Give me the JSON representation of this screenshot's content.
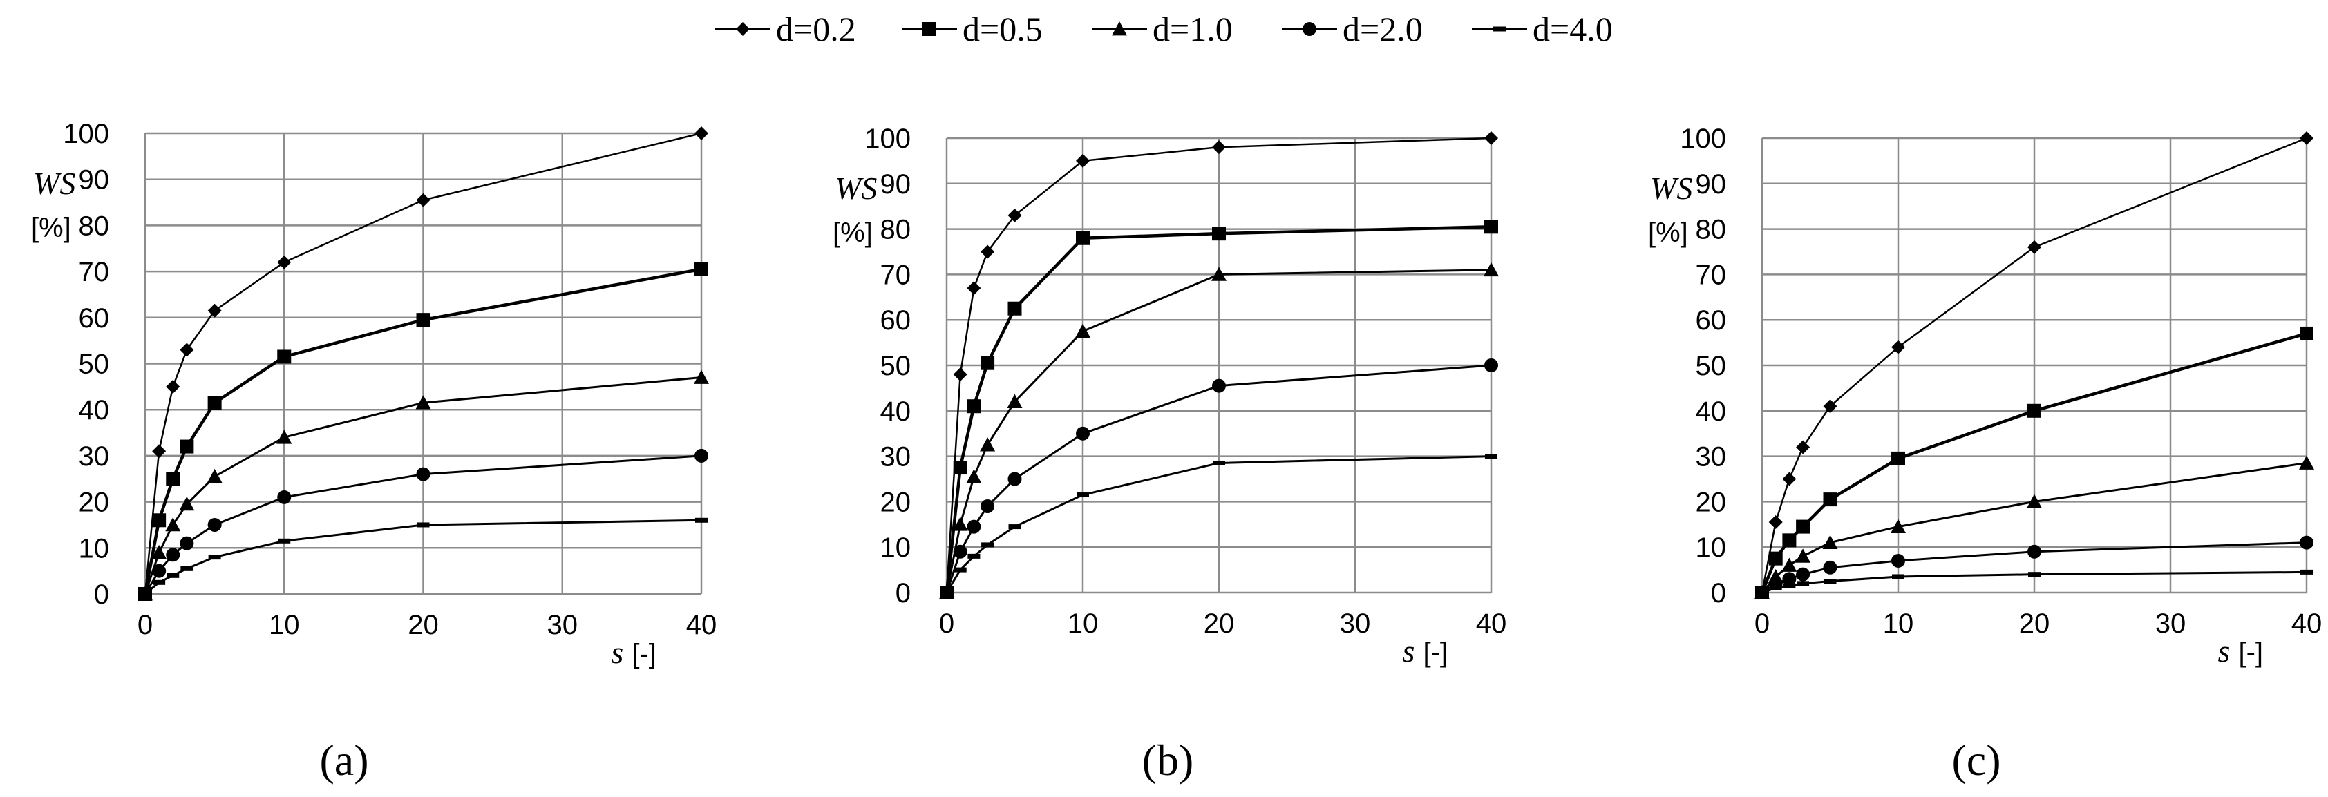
{
  "legend": [
    {
      "name": "d=0.2",
      "marker": "diamond"
    },
    {
      "name": "d=0.5",
      "marker": "square"
    },
    {
      "name": "d=1.0",
      "marker": "triangle"
    },
    {
      "name": "d=2.0",
      "marker": "circle"
    },
    {
      "name": "d=4.0",
      "marker": "dash"
    }
  ],
  "chart_data": [
    {
      "type": "line",
      "panel_label": "(a)",
      "ylabel": "WS",
      "ylabel_unit": "[%]",
      "xlabel": "s",
      "xlabel_unit": "[-]",
      "xlim": [
        0,
        40
      ],
      "ylim": [
        0,
        100
      ],
      "xticks": [
        0,
        10,
        20,
        30,
        40
      ],
      "yticks": [
        0,
        10,
        20,
        30,
        40,
        50,
        60,
        70,
        80,
        90,
        100
      ],
      "grid": true,
      "x": [
        0,
        1,
        2,
        3,
        5,
        10,
        20,
        40
      ],
      "series": [
        {
          "name": "d=0.2",
          "values": [
            0,
            31,
            45,
            53,
            61.5,
            72,
            85.5,
            100
          ]
        },
        {
          "name": "d=0.5",
          "values": [
            0,
            16,
            25,
            32,
            41.5,
            51.5,
            59.5,
            70.5
          ]
        },
        {
          "name": "d=1.0",
          "values": [
            0,
            9,
            15,
            19.5,
            25.5,
            34,
            41.5,
            47
          ]
        },
        {
          "name": "d=2.0",
          "values": [
            0,
            5,
            8.5,
            11,
            15,
            21,
            26,
            30
          ]
        },
        {
          "name": "d=4.0",
          "values": [
            0,
            2.5,
            4,
            5.5,
            8,
            11.5,
            15,
            16
          ]
        }
      ]
    },
    {
      "type": "line",
      "panel_label": "(b)",
      "ylabel": "WS",
      "ylabel_unit": "[%]",
      "xlabel": "s",
      "xlabel_unit": "[-]",
      "xlim": [
        0,
        40
      ],
      "ylim": [
        0,
        100
      ],
      "xticks": [
        0,
        10,
        20,
        30,
        40
      ],
      "yticks": [
        0,
        10,
        20,
        30,
        40,
        50,
        60,
        70,
        80,
        90,
        100
      ],
      "grid": true,
      "x": [
        0,
        1,
        2,
        3,
        5,
        10,
        20,
        40
      ],
      "series": [
        {
          "name": "d=0.2",
          "values": [
            0,
            48,
            67,
            75,
            83,
            95,
            98,
            100
          ]
        },
        {
          "name": "d=0.5",
          "values": [
            0,
            27.5,
            41,
            50.5,
            62.5,
            78,
            79,
            80.5
          ]
        },
        {
          "name": "d=1.0",
          "values": [
            0,
            15,
            25.5,
            32.5,
            42,
            57.5,
            70,
            71
          ]
        },
        {
          "name": "d=2.0",
          "values": [
            0,
            9,
            14.5,
            19,
            25,
            35,
            45.5,
            50
          ]
        },
        {
          "name": "d=4.0",
          "values": [
            0,
            5,
            8,
            10.5,
            14.5,
            21.5,
            28.5,
            30
          ]
        }
      ]
    },
    {
      "type": "line",
      "panel_label": "(c)",
      "ylabel": "WS",
      "ylabel_unit": "[%]",
      "xlabel": "s",
      "xlabel_unit": "[-]",
      "xlim": [
        0,
        40
      ],
      "ylim": [
        0,
        100
      ],
      "xticks": [
        0,
        10,
        20,
        30,
        40
      ],
      "yticks": [
        0,
        10,
        20,
        30,
        40,
        50,
        60,
        70,
        80,
        90,
        100
      ],
      "grid": true,
      "x": [
        0,
        1,
        2,
        3,
        5,
        10,
        20,
        40
      ],
      "series": [
        {
          "name": "d=0.2",
          "values": [
            0,
            15.5,
            25,
            32,
            41,
            54,
            76,
            100
          ]
        },
        {
          "name": "d=0.5",
          "values": [
            0,
            7.5,
            11.5,
            14.5,
            20.5,
            29.5,
            40,
            57
          ]
        },
        {
          "name": "d=1.0",
          "values": [
            0,
            3.5,
            6,
            8,
            11,
            14.5,
            20,
            28.5
          ]
        },
        {
          "name": "d=2.0",
          "values": [
            0,
            2,
            3,
            4,
            5.5,
            7,
            9,
            11
          ]
        },
        {
          "name": "d=4.0",
          "values": [
            0,
            1,
            1.5,
            2,
            2.5,
            3.5,
            4,
            4.5
          ]
        }
      ]
    }
  ]
}
